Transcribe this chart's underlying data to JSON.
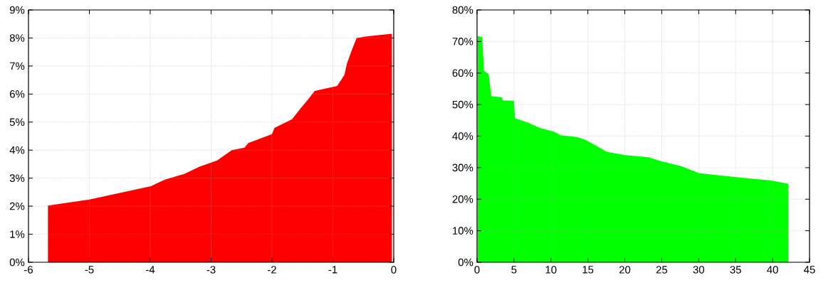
{
  "chart_data": [
    {
      "type": "area",
      "grid": true,
      "xlim": [
        -6,
        0
      ],
      "ylim": [
        0,
        9
      ],
      "xticks": [
        -6,
        -5,
        -4,
        -3,
        -2,
        -1,
        0
      ],
      "yticks": [
        {
          "value": 0,
          "label": "0%"
        },
        {
          "value": 1,
          "label": "1%"
        },
        {
          "value": 2,
          "label": "2%"
        },
        {
          "value": 3,
          "label": "3%"
        },
        {
          "value": 4,
          "label": "4%"
        },
        {
          "value": 5,
          "label": "5%"
        },
        {
          "value": 6,
          "label": "6%"
        },
        {
          "value": 7,
          "label": "7%"
        },
        {
          "value": 8,
          "label": "8%"
        },
        {
          "value": 9,
          "label": "9%"
        }
      ],
      "series": [
        {
          "color": "#ff0000",
          "x": [
            -5.68,
            -5.0,
            -4.42,
            -3.99,
            -3.76,
            -3.44,
            -3.19,
            -2.9,
            -2.66,
            -2.45,
            -2.39,
            -2.0,
            -1.96,
            -1.67,
            -1.53,
            -1.41,
            -1.3,
            -0.93,
            -0.81,
            -0.77,
            -0.69,
            -0.61,
            -0.4,
            -0.03
          ],
          "values": [
            2.02,
            2.24,
            2.51,
            2.71,
            2.95,
            3.15,
            3.41,
            3.63,
            4.0,
            4.09,
            4.25,
            4.57,
            4.79,
            5.1,
            5.49,
            5.8,
            6.11,
            6.29,
            6.68,
            7.08,
            7.56,
            8.0,
            8.07,
            8.15
          ]
        }
      ]
    },
    {
      "type": "area",
      "grid": true,
      "xlim": [
        0,
        45
      ],
      "ylim": [
        0,
        80
      ],
      "xticks": [
        0,
        5,
        10,
        15,
        20,
        25,
        30,
        35,
        40,
        45
      ],
      "yticks": [
        {
          "value": 0,
          "label": "0%"
        },
        {
          "value": 10,
          "label": "10%"
        },
        {
          "value": 20,
          "label": "20%"
        },
        {
          "value": 30,
          "label": "30%"
        },
        {
          "value": 40,
          "label": "40%"
        },
        {
          "value": 50,
          "label": "50%"
        },
        {
          "value": 60,
          "label": "60%"
        },
        {
          "value": 70,
          "label": "70%"
        },
        {
          "value": 80,
          "label": "80%"
        }
      ],
      "series": [
        {
          "color": "#00ff00",
          "x": [
            0.06,
            0.69,
            0.94,
            1.56,
            1.94,
            3.35,
            3.5,
            5.0,
            5.13,
            6.95,
            8.5,
            10.4,
            11.3,
            13.5,
            14.6,
            15.7,
            17.6,
            20.1,
            23.2,
            24.8,
            27.6,
            30.1,
            32.6,
            35.1,
            39.8,
            42.1
          ],
          "values": [
            71.8,
            71.4,
            60.7,
            59.7,
            52.7,
            52.3,
            51.3,
            51.2,
            45.7,
            44.2,
            42.6,
            41.4,
            40.3,
            39.7,
            38.9,
            37.5,
            35.0,
            34.0,
            33.3,
            32.1,
            30.5,
            28.2,
            27.6,
            27.0,
            25.9,
            24.9
          ]
        }
      ]
    }
  ]
}
